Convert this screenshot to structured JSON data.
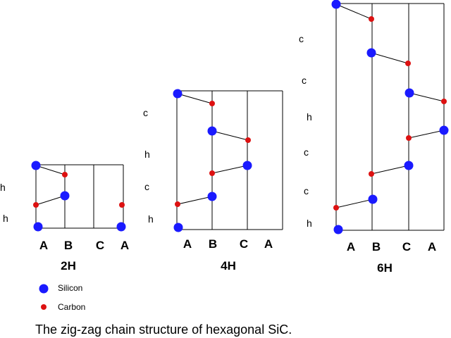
{
  "colors": {
    "silicon": "#1a1aff",
    "carbon": "#dd1111",
    "line": "#000000",
    "background": "#ffffff"
  },
  "legend": {
    "silicon_label": "Silicon",
    "carbon_label": "Carbon"
  },
  "caption": "The zig-zag chain structure of hexagonal SiC.",
  "polytypes": [
    {
      "name": "2H",
      "columns": [
        "A",
        "B",
        "C",
        "A"
      ],
      "stacking_labels": [
        "h",
        "h"
      ],
      "stacking": [
        "A",
        "B",
        "A"
      ]
    },
    {
      "name": "4H",
      "columns": [
        "A",
        "B",
        "C",
        "A"
      ],
      "stacking_labels": [
        "h",
        "c",
        "h",
        "c"
      ],
      "stacking": [
        "A",
        "B",
        "C",
        "B",
        "A"
      ]
    },
    {
      "name": "6H",
      "columns": [
        "A",
        "B",
        "C",
        "A"
      ],
      "stacking_labels": [
        "h",
        "c",
        "c",
        "h",
        "c",
        "c"
      ],
      "stacking": [
        "A",
        "B",
        "C",
        "A",
        "C",
        "B",
        "A"
      ]
    }
  ]
}
